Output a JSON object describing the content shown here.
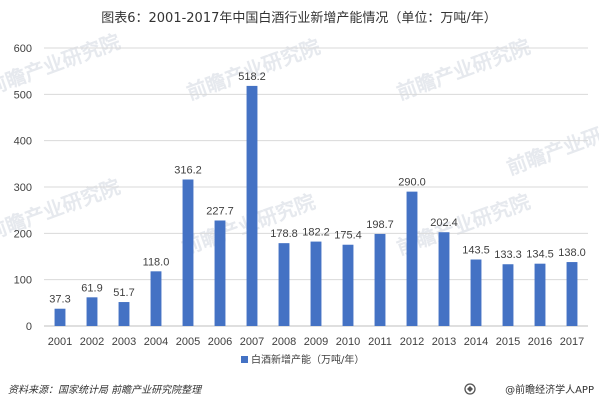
{
  "chart_data": {
    "type": "bar",
    "title": "图表6：2001-2017年中国白酒行业新增产能情况（单位：万吨/年）",
    "categories": [
      "2001",
      "2002",
      "2003",
      "2004",
      "2005",
      "2006",
      "2007",
      "2008",
      "2009",
      "2010",
      "2011",
      "2012",
      "2013",
      "2014",
      "2015",
      "2016",
      "2017"
    ],
    "series": [
      {
        "name": "白酒新增产能（万吨/年）",
        "values": [
          37.3,
          61.9,
          51.7,
          118.0,
          316.2,
          227.7,
          518.2,
          178.8,
          182.2,
          175.4,
          198.7,
          290.0,
          202.4,
          143.5,
          133.3,
          134.5,
          138.0
        ],
        "labels": [
          "37.3",
          "61.9",
          "51.7",
          "118.0",
          "316.2",
          "227.7",
          "518.2",
          "178.8",
          "182.2",
          "175.4",
          "198.7",
          "290.0",
          "202.4",
          "143.5",
          "133.3",
          "134.5",
          "138.0"
        ]
      }
    ],
    "ylim": [
      0,
      600
    ],
    "yticks": [
      0,
      100,
      200,
      300,
      400,
      500,
      600
    ],
    "xlabel": "",
    "ylabel": "",
    "grid": true,
    "legend": "bottom-center",
    "bar_color": "#4472c4"
  },
  "footer": {
    "source": "资料来源：国家统计局 前瞻产业研究院整理",
    "brand": "@前瞻经济学人APP",
    "brand_icon": "qianzhan-logo-icon"
  },
  "watermark": {
    "text": "前瞻产业研究院"
  }
}
